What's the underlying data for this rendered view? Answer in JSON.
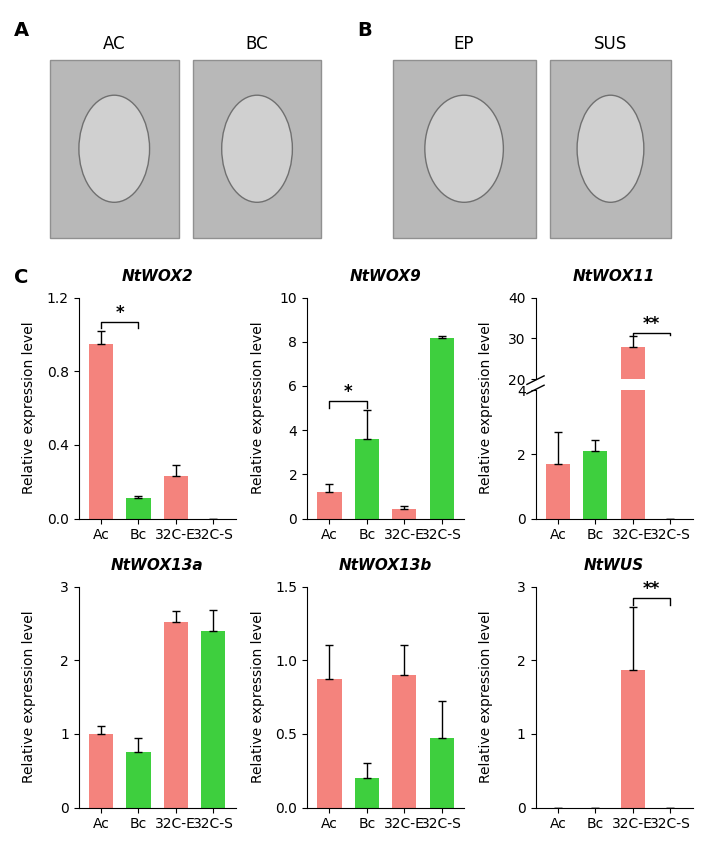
{
  "panels": [
    {
      "label": "A",
      "images": [
        "AC",
        "BC"
      ]
    },
    {
      "label": "B",
      "images": [
        "EP",
        "SUS"
      ]
    },
    {
      "label": "C"
    }
  ],
  "chart_data": [
    {
      "type": "bar",
      "title": "NtWOX2",
      "ylabel": "Relative expression level",
      "categories": [
        "Ac",
        "Bc",
        "32C-E",
        "32C-S"
      ],
      "values": [
        0.95,
        0.11,
        0.23,
        0
      ],
      "errors": [
        0.07,
        0.01,
        0.06,
        0
      ],
      "colors": [
        "#f4837d",
        "#3ecf3e",
        "#f4837d",
        "#3ecf3e"
      ],
      "ylim": [
        0,
        1.2
      ],
      "yticks": [
        {
          "value": 0,
          "label": "0.0"
        },
        0.4,
        0.8,
        1.2
      ],
      "annotations": [
        {
          "pair": [
            0,
            1
          ],
          "label": "*"
        }
      ]
    },
    {
      "type": "bar",
      "title": "NtWOX9",
      "ylabel": "Relative expression level",
      "categories": [
        "Ac",
        "Bc",
        "32C-E",
        "32C-S"
      ],
      "values": [
        1.2,
        3.6,
        0.45,
        8.15
      ],
      "errors": [
        0.35,
        1.3,
        0.12,
        0.1
      ],
      "colors": [
        "#f4837d",
        "#3ecf3e",
        "#f4837d",
        "#3ecf3e"
      ],
      "ylim": [
        0,
        10
      ],
      "yticks": [
        0,
        2,
        4,
        6,
        8,
        10
      ],
      "annotations": [
        {
          "pair": [
            0,
            1
          ],
          "label": "*"
        }
      ]
    },
    {
      "type": "bar",
      "title": "NtWOX11",
      "ylabel": "Relative expression level",
      "categories": [
        "Ac",
        "Bc",
        "32C-E",
        "32C-S"
      ],
      "values": [
        1.7,
        2.1,
        27.8,
        0
      ],
      "errors": [
        1.0,
        0.35,
        2.8,
        0
      ],
      "colors": [
        "#f4837d",
        "#3ecf3e",
        "#f4837d",
        "#3ecf3e"
      ],
      "ylim": [
        0,
        40
      ],
      "yticks": [
        0,
        2,
        4,
        20,
        30,
        40
      ],
      "axis_break": [
        4,
        20
      ],
      "annotations": [
        {
          "pair": [
            2,
            3
          ],
          "label": "**"
        }
      ]
    },
    {
      "type": "bar",
      "title": "NtWOX13a",
      "ylabel": "Relative expression level",
      "categories": [
        "Ac",
        "Bc",
        "32C-E",
        "32C-S"
      ],
      "values": [
        1.0,
        0.75,
        2.52,
        2.4
      ],
      "errors": [
        0.1,
        0.2,
        0.15,
        0.28
      ],
      "colors": [
        "#f4837d",
        "#3ecf3e",
        "#f4837d",
        "#3ecf3e"
      ],
      "ylim": [
        0,
        3
      ],
      "yticks": [
        0,
        1,
        2,
        3
      ]
    },
    {
      "type": "bar",
      "title": "NtWOX13b",
      "ylabel": "Relative expression level",
      "categories": [
        "Ac",
        "Bc",
        "32C-E",
        "32C-S"
      ],
      "values": [
        0.87,
        0.2,
        0.9,
        0.47
      ],
      "errors": [
        0.23,
        0.1,
        0.2,
        0.25
      ],
      "colors": [
        "#f4837d",
        "#3ecf3e",
        "#f4837d",
        "#3ecf3e"
      ],
      "ylim": [
        0,
        1.5
      ],
      "yticks": [
        {
          "value": 0,
          "label": "0.0"
        },
        0.5,
        {
          "value": 1.0,
          "label": "1.0"
        },
        1.5
      ]
    },
    {
      "type": "bar",
      "title": "NtWUS",
      "ylabel": "Relative expression level",
      "categories": [
        "Ac",
        "Bc",
        "32C-E",
        "32C-S"
      ],
      "values": [
        0,
        0,
        1.87,
        0
      ],
      "errors": [
        0,
        0,
        0.85,
        0
      ],
      "colors": [
        "#f4837d",
        "#3ecf3e",
        "#f4837d",
        "#3ecf3e"
      ],
      "ylim": [
        0,
        3
      ],
      "yticks": [
        0,
        1,
        2,
        3
      ],
      "annotations": [
        {
          "pair": [
            2,
            3
          ],
          "label": "**"
        }
      ]
    }
  ]
}
